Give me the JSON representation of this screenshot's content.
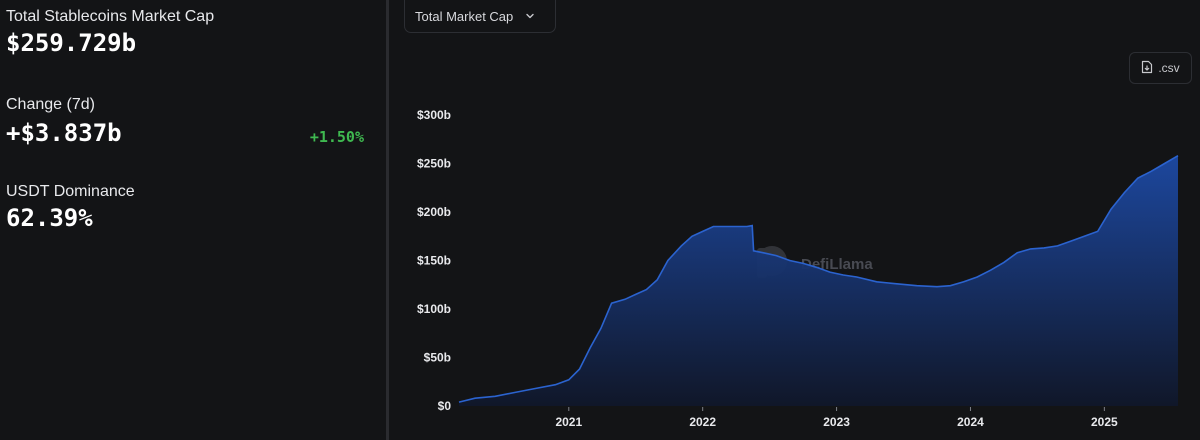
{
  "stats": {
    "market_cap_label": "Total Stablecoins Market Cap",
    "market_cap_value": "$259.729b",
    "change_label": "Change (7d)",
    "change_value": "+$3.837b",
    "change_pct": "+1.50%",
    "dominance_label": "USDT Dominance",
    "dominance_value": "62.39%"
  },
  "controls": {
    "dropdown_label": "Total Market Cap",
    "dropdown_icon": "chevron-down-icon",
    "csv_label": ".csv",
    "csv_icon": "file-download-icon"
  },
  "watermark": "DefiLlama",
  "colors": {
    "positive": "#3fb950",
    "line": "#2b63cf",
    "area_top": "#1d4aa5",
    "area_bottom": "#10172a"
  },
  "chart_data": {
    "type": "area",
    "title": "",
    "xlabel": "",
    "ylabel": "",
    "ylim": [
      0,
      300
    ],
    "y_unit": "b",
    "y_ticks": [
      0,
      50,
      100,
      150,
      200,
      250,
      300
    ],
    "y_tick_labels": [
      "$0",
      "$50b",
      "$100b",
      "$150b",
      "$200b",
      "$250b",
      "$300b"
    ],
    "x_tick_labels": [
      "2021",
      "2022",
      "2023",
      "2024",
      "2025"
    ],
    "x_ticks": [
      2021.0,
      2022.0,
      2023.0,
      2024.0,
      2025.0
    ],
    "xlim": [
      2020.18,
      2025.55
    ],
    "grid": false,
    "series": [
      {
        "x": [
          2020.18,
          2020.3,
          2020.45,
          2020.6,
          2020.75,
          2020.9,
          2021.0,
          2021.08,
          2021.16,
          2021.24,
          2021.32,
          2021.42,
          2021.5,
          2021.58,
          2021.66,
          2021.74,
          2021.84,
          2021.92,
          2022.0,
          2022.08,
          2022.16,
          2022.25,
          2022.33,
          2022.37,
          2022.38,
          2022.45,
          2022.55,
          2022.65,
          2022.75,
          2022.85,
          2022.95,
          2023.05,
          2023.15,
          2023.3,
          2023.45,
          2023.6,
          2023.75,
          2023.85,
          2023.95,
          2024.05,
          2024.15,
          2024.25,
          2024.35,
          2024.45,
          2024.55,
          2024.65,
          2024.75,
          2024.85,
          2024.95,
          2025.05,
          2025.15,
          2025.25,
          2025.35,
          2025.45,
          2025.55
        ],
        "y": [
          4,
          8,
          10,
          14,
          18,
          22,
          27,
          38,
          60,
          80,
          106,
          110,
          115,
          120,
          130,
          150,
          165,
          175,
          180,
          185,
          185,
          185,
          185,
          186,
          160,
          158,
          155,
          150,
          147,
          143,
          138,
          135,
          133,
          128,
          126,
          124,
          123,
          124,
          128,
          133,
          140,
          148,
          158,
          162,
          163,
          165,
          170,
          175,
          180,
          203,
          220,
          235,
          242,
          250,
          258
        ]
      }
    ]
  }
}
